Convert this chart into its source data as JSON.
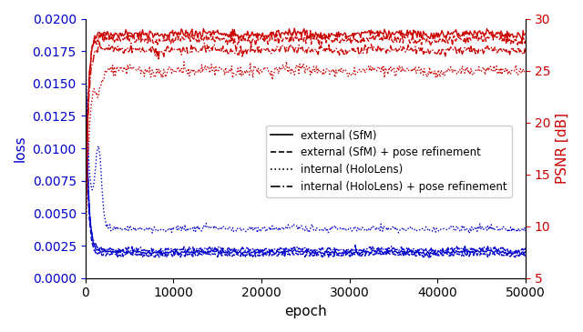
{
  "title": "",
  "xlabel": "epoch",
  "ylabel_left": "loss",
  "ylabel_right": "PSNR [dB]",
  "xlim": [
    0,
    50000
  ],
  "ylim_left": [
    0,
    0.02
  ],
  "ylim_right": [
    5,
    30
  ],
  "yticks_left": [
    0.0,
    0.0025,
    0.005,
    0.0075,
    0.01,
    0.0125,
    0.015,
    0.0175,
    0.02
  ],
  "yticks_right": [
    5,
    10,
    15,
    20,
    25,
    30
  ],
  "xticks": [
    0,
    10000,
    20000,
    30000,
    40000,
    50000
  ],
  "color_blue": "#0000cc",
  "color_red": "#cc0000",
  "legend_labels": [
    "external (SfM)",
    "external (SfM) + pose refinement",
    "internal (HoloLens)",
    "internal (HoloLens) + pose refinement"
  ],
  "legend_styles": [
    "solid",
    "dashed",
    "dotted",
    "dashdot"
  ],
  "n_points": 500,
  "seed": 42
}
